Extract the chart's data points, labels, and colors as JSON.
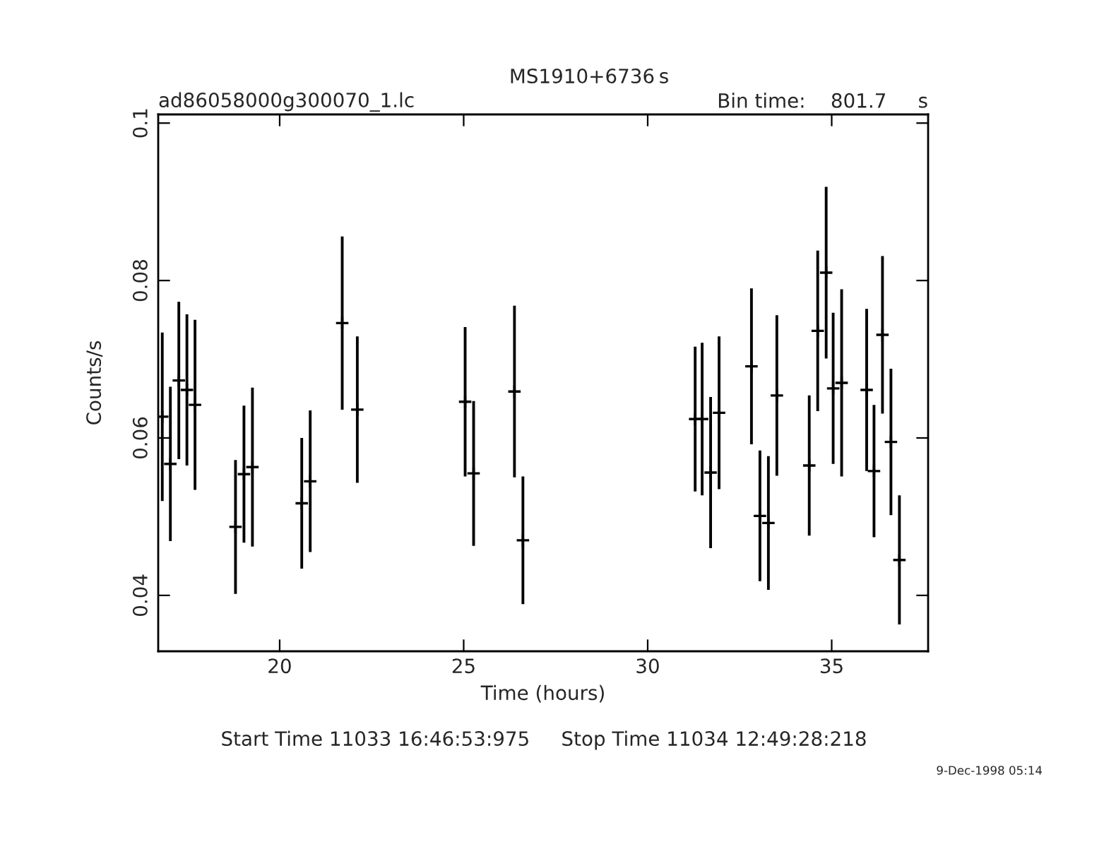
{
  "chart_data": {
    "type": "scatter",
    "title": "MS1910+6736",
    "subtitle": "ad86058000g300070_1.lc",
    "xlabel": "Time (hours)",
    "ylabel": "Counts/s",
    "annotations": [
      "s",
      "Bin time:    801.7     s",
      "Start Time 11033 16:46:53:975     Stop Time 11034 12:49:28:218",
      "9-Dec-1998 05:14"
    ],
    "x": [
      16.81,
      17.03,
      17.26,
      17.48,
      17.7,
      18.8,
      19.03,
      19.26,
      20.6,
      20.83,
      21.7,
      22.11,
      25.04,
      25.27,
      26.38,
      26.61,
      31.29,
      31.48,
      31.71,
      31.94,
      32.82,
      33.05,
      33.28,
      33.51,
      34.39,
      34.62,
      34.85,
      35.04,
      35.27,
      35.95,
      36.15,
      36.38,
      36.61,
      36.84
    ],
    "values": [
      0.0627,
      0.0567,
      0.0673,
      0.0661,
      0.0642,
      0.0487,
      0.0554,
      0.0563,
      0.0517,
      0.0545,
      0.0746,
      0.0636,
      0.0646,
      0.0555,
      0.0659,
      0.047,
      0.0624,
      0.0624,
      0.0556,
      0.0632,
      0.0691,
      0.0501,
      0.0492,
      0.0654,
      0.0565,
      0.0736,
      0.081,
      0.0663,
      0.067,
      0.0661,
      0.0558,
      0.0731,
      0.0595,
      0.0445
    ],
    "errors": [
      0.0107,
      0.0098,
      0.01,
      0.0096,
      0.0108,
      0.0085,
      0.0087,
      0.0101,
      0.0083,
      0.009,
      0.011,
      0.0093,
      0.0095,
      0.0092,
      0.0109,
      0.0081,
      0.0092,
      0.0097,
      0.0096,
      0.0097,
      0.0099,
      0.0083,
      0.0085,
      0.0102,
      0.0089,
      0.0102,
      0.0109,
      0.0096,
      0.0119,
      0.0103,
      0.0084,
      0.01,
      0.0093,
      0.0082
    ],
    "color": "#000000",
    "marker": "cross",
    "grid": false,
    "legend": false,
    "xlim": [
      16.7,
      37.62
    ],
    "ylim": [
      0.0329,
      0.1011
    ],
    "xticks": [
      20,
      25,
      30,
      35
    ],
    "yticks": [
      {
        "value": 0.04,
        "label": "0.04"
      },
      {
        "value": 0.06,
        "label": "0.06"
      },
      {
        "value": 0.08,
        "label": "0.08"
      },
      {
        "value": 0.1,
        "label": "0.1"
      }
    ]
  }
}
